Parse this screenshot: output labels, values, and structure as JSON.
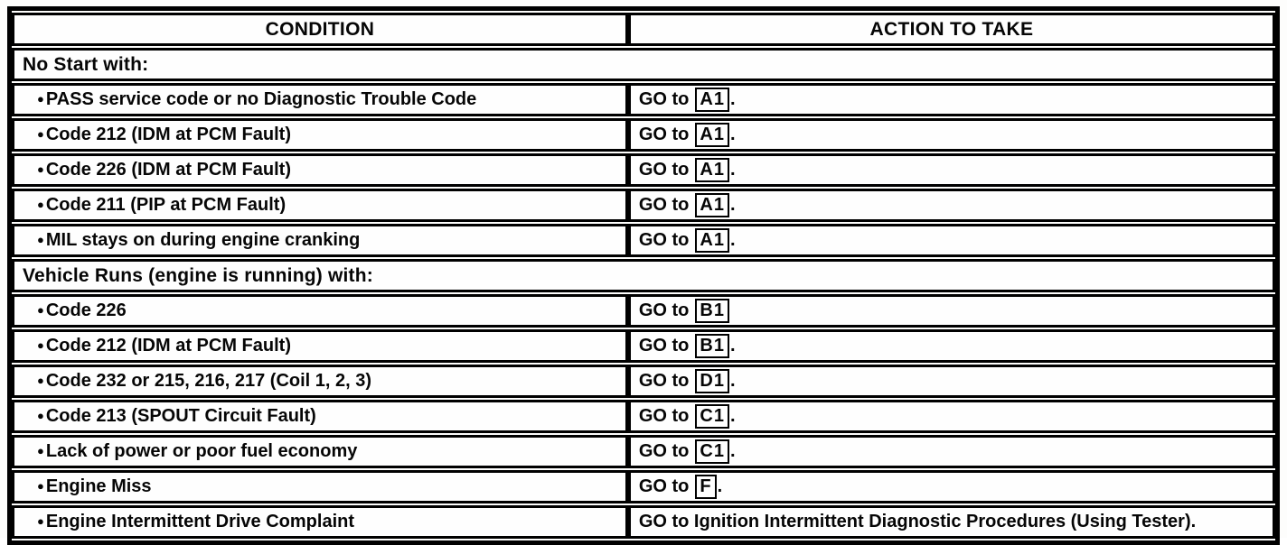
{
  "table": {
    "bullet": "●",
    "headers": {
      "condition": "CONDITION",
      "action": "ACTION TO TAKE"
    },
    "rows": [
      {
        "type": "section",
        "title": "No Start with:"
      },
      {
        "type": "item",
        "condition": "PASS service code or no Diagnostic Trouble Code",
        "action": {
          "prefix": "GO to",
          "box": "A1",
          "suffix": "."
        }
      },
      {
        "type": "item",
        "condition": "Code 212 (IDM at PCM Fault)",
        "action": {
          "prefix": "GO to",
          "box": "A1",
          "suffix": "."
        }
      },
      {
        "type": "item",
        "condition": "Code 226 (IDM at PCM Fault)",
        "action": {
          "prefix": "GO to",
          "box": "A1",
          "suffix": "."
        }
      },
      {
        "type": "item",
        "condition": "Code 211 (PIP at PCM Fault)",
        "action": {
          "prefix": "GO to",
          "box": "A1",
          "suffix": "."
        }
      },
      {
        "type": "item",
        "condition": "MIL stays on during engine cranking",
        "action": {
          "prefix": "GO to",
          "box": "A1",
          "suffix": "."
        }
      },
      {
        "type": "section",
        "title": "Vehicle Runs (engine is running) with:"
      },
      {
        "type": "item",
        "condition": "Code 226",
        "action": {
          "prefix": "GO to",
          "box": "B1",
          "suffix": ""
        }
      },
      {
        "type": "item",
        "condition": "Code 212 (IDM at PCM Fault)",
        "action": {
          "prefix": "GO to",
          "box": "B1",
          "suffix": "."
        }
      },
      {
        "type": "item",
        "condition": "Code 232 or 215, 216, 217 (Coil 1, 2, 3)",
        "action": {
          "prefix": "GO to",
          "box": "D1",
          "suffix": "."
        }
      },
      {
        "type": "item",
        "condition": "Code 213 (SPOUT Circuit Fault)",
        "action": {
          "prefix": "GO to",
          "box": "C1",
          "suffix": "."
        }
      },
      {
        "type": "item",
        "condition": "Lack of power or poor fuel economy",
        "action": {
          "prefix": "GO to",
          "box": "C1",
          "suffix": "."
        }
      },
      {
        "type": "item",
        "condition": "Engine Miss",
        "action": {
          "prefix": "GO to",
          "box": "F",
          "suffix": "."
        }
      },
      {
        "type": "item",
        "condition": "Engine Intermittent Drive Complaint",
        "action": {
          "prefix": "GO to Ignition Intermittent Diagnostic Procedures (Using Tester).",
          "box": "",
          "suffix": ""
        }
      }
    ]
  },
  "colors": {
    "border": "#000000",
    "background": "#fdfdfc",
    "text": "#060606"
  }
}
